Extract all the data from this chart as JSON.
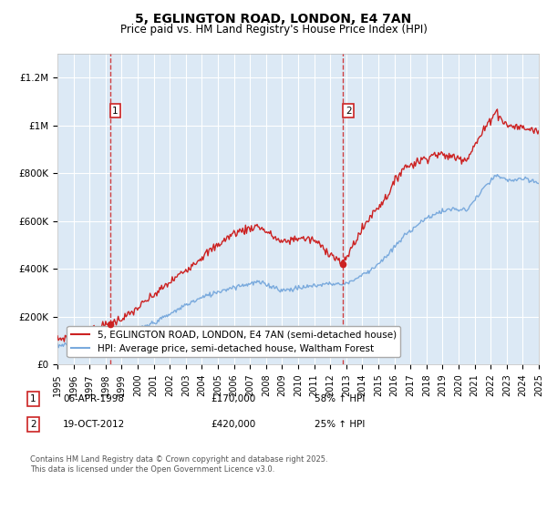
{
  "title": "5, EGLINGTON ROAD, LONDON, E4 7AN",
  "subtitle": "Price paid vs. HM Land Registry's House Price Index (HPI)",
  "ylim": [
    0,
    1300000
  ],
  "yticks": [
    0,
    200000,
    400000,
    600000,
    800000,
    1000000,
    1200000
  ],
  "ytick_labels": [
    "£0",
    "£200K",
    "£400K",
    "£600K",
    "£800K",
    "£1M",
    "£1.2M"
  ],
  "x_start_year": 1995,
  "x_end_year": 2025,
  "plot_bg_color": "#dce9f5",
  "red_color": "#cc2222",
  "blue_color": "#7aaadd",
  "legend_label_red": "5, EGLINGTON ROAD, LONDON, E4 7AN (semi-detached house)",
  "legend_label_blue": "HPI: Average price, semi-detached house, Waltham Forest",
  "annotation1_label": "1",
  "annotation1_date": "06-APR-1998",
  "annotation1_price": "£170,000",
  "annotation1_hpi": "58% ↑ HPI",
  "annotation1_year": 1998.27,
  "annotation1_value": 170000,
  "annotation2_label": "2",
  "annotation2_date": "19-OCT-2012",
  "annotation2_price": "£420,000",
  "annotation2_hpi": "25% ↑ HPI",
  "annotation2_year": 2012.8,
  "annotation2_value": 420000,
  "footer": "Contains HM Land Registry data © Crown copyright and database right 2025.\nThis data is licensed under the Open Government Licence v3.0.",
  "title_fontsize": 10,
  "subtitle_fontsize": 8.5,
  "tick_fontsize": 7.5,
  "legend_fontsize": 7.5,
  "footer_fontsize": 6.0
}
